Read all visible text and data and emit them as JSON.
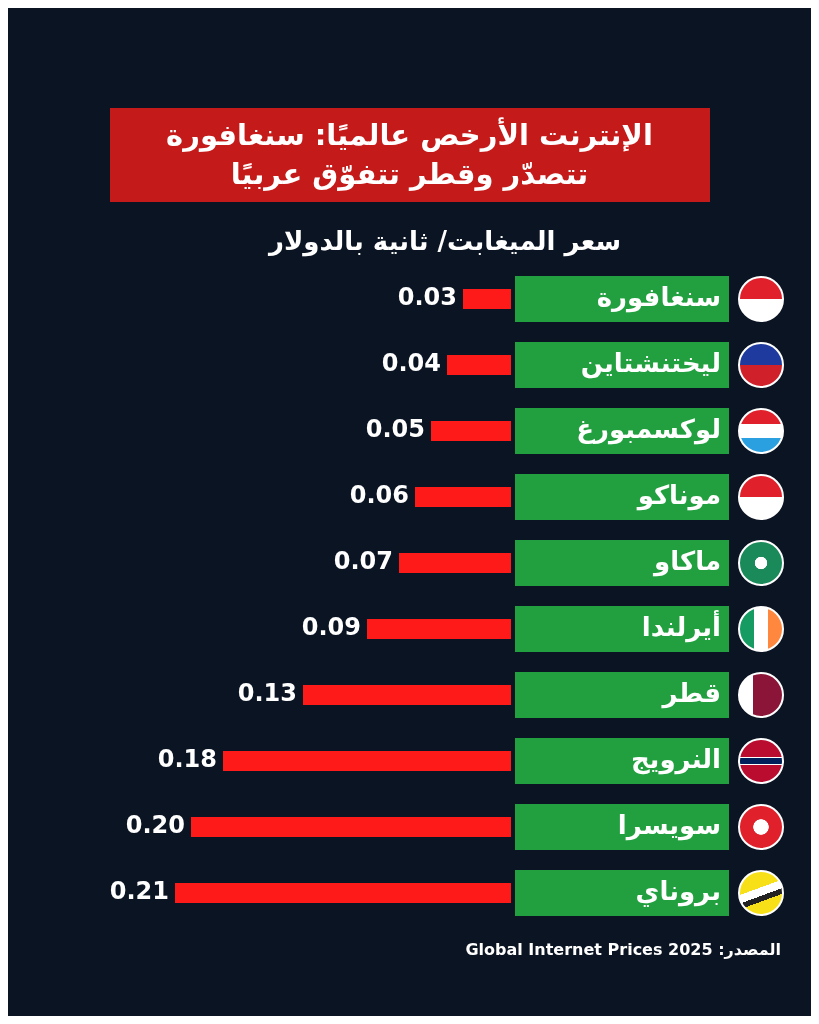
{
  "chart_data": {
    "type": "bar",
    "orientation": "horizontal",
    "title": "الإنترنت الأرخص عالميًا: سنغافورة تتصدّر وقطر تتفوّق عربيًا",
    "subtitle": "سعر الميغابت/ ثانية بالدولار",
    "categories": [
      "سنغافورة",
      "ليختنشتاين",
      "لوكسمبورغ",
      "موناكو",
      "ماكاو",
      "أيرلندا",
      "قطر",
      "النرويج",
      "سويسرا",
      "بروناي"
    ],
    "values": [
      0.03,
      0.04,
      0.05,
      0.06,
      0.07,
      0.09,
      0.13,
      0.18,
      0.2,
      0.21
    ],
    "value_labels": [
      "0.03",
      "0.04",
      "0.05",
      "0.06",
      "0.07",
      "0.09",
      "0.13",
      "0.18",
      "0.20",
      "0.21"
    ],
    "color": "#ff1a1a",
    "annotations": [
      "المصدر: Global Internet Prices 2025"
    ]
  }
}
